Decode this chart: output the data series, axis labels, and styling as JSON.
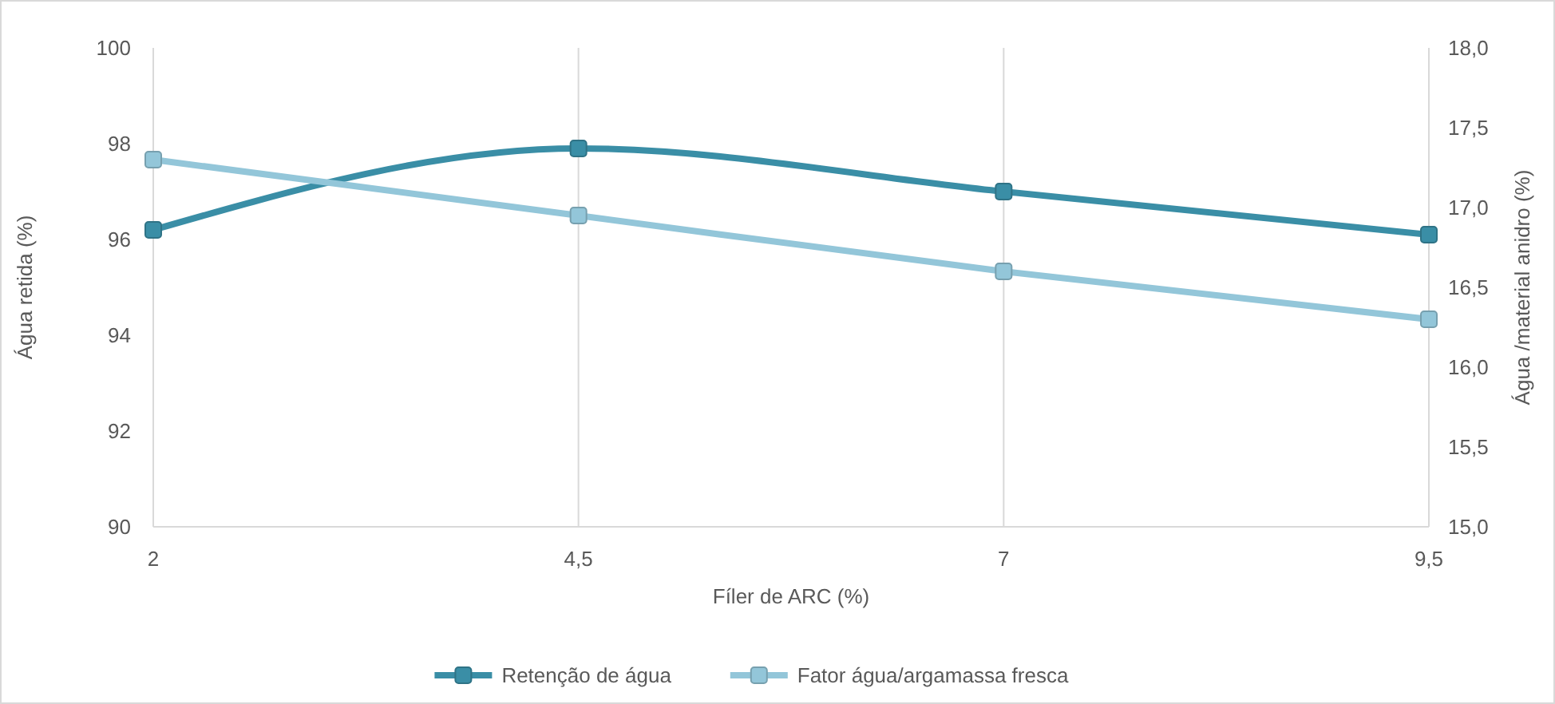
{
  "chart_data": {
    "type": "line",
    "xlabel": "Fíler de ARC (%)",
    "ylabel": "Água retida (%)",
    "y2label": "Água /material anidro (%)",
    "categories": [
      "2",
      "4,5",
      "7",
      "9,5"
    ],
    "series": [
      {
        "name": "Retenção de água",
        "color": "#3a8ea6",
        "values": [
          96.2,
          97.9,
          97.0,
          96.1
        ]
      },
      {
        "name": "Fator água/argamassa fresca",
        "color": "#93c6d9",
        "values": [
          17.3,
          16.95,
          16.6,
          16.3
        ],
        "axis": "y2"
      }
    ],
    "ylim": [
      90,
      100
    ],
    "yticks": [
      90,
      92,
      94,
      96,
      98,
      100
    ],
    "y2lim": [
      15,
      18
    ],
    "y2ticks": [
      {
        "value": 15,
        "label": "15,0"
      },
      {
        "value": 15.5,
        "label": "15,5"
      },
      {
        "value": 16,
        "label": "16,0"
      },
      {
        "value": 16.5,
        "label": "16,5"
      },
      {
        "value": 17,
        "label": "17,0"
      },
      {
        "value": 17.5,
        "label": "17,5"
      },
      {
        "value": 18,
        "label": "18,0"
      }
    ],
    "grid": "x",
    "legend": "bottom",
    "marker": "square",
    "line_style": "solid"
  }
}
